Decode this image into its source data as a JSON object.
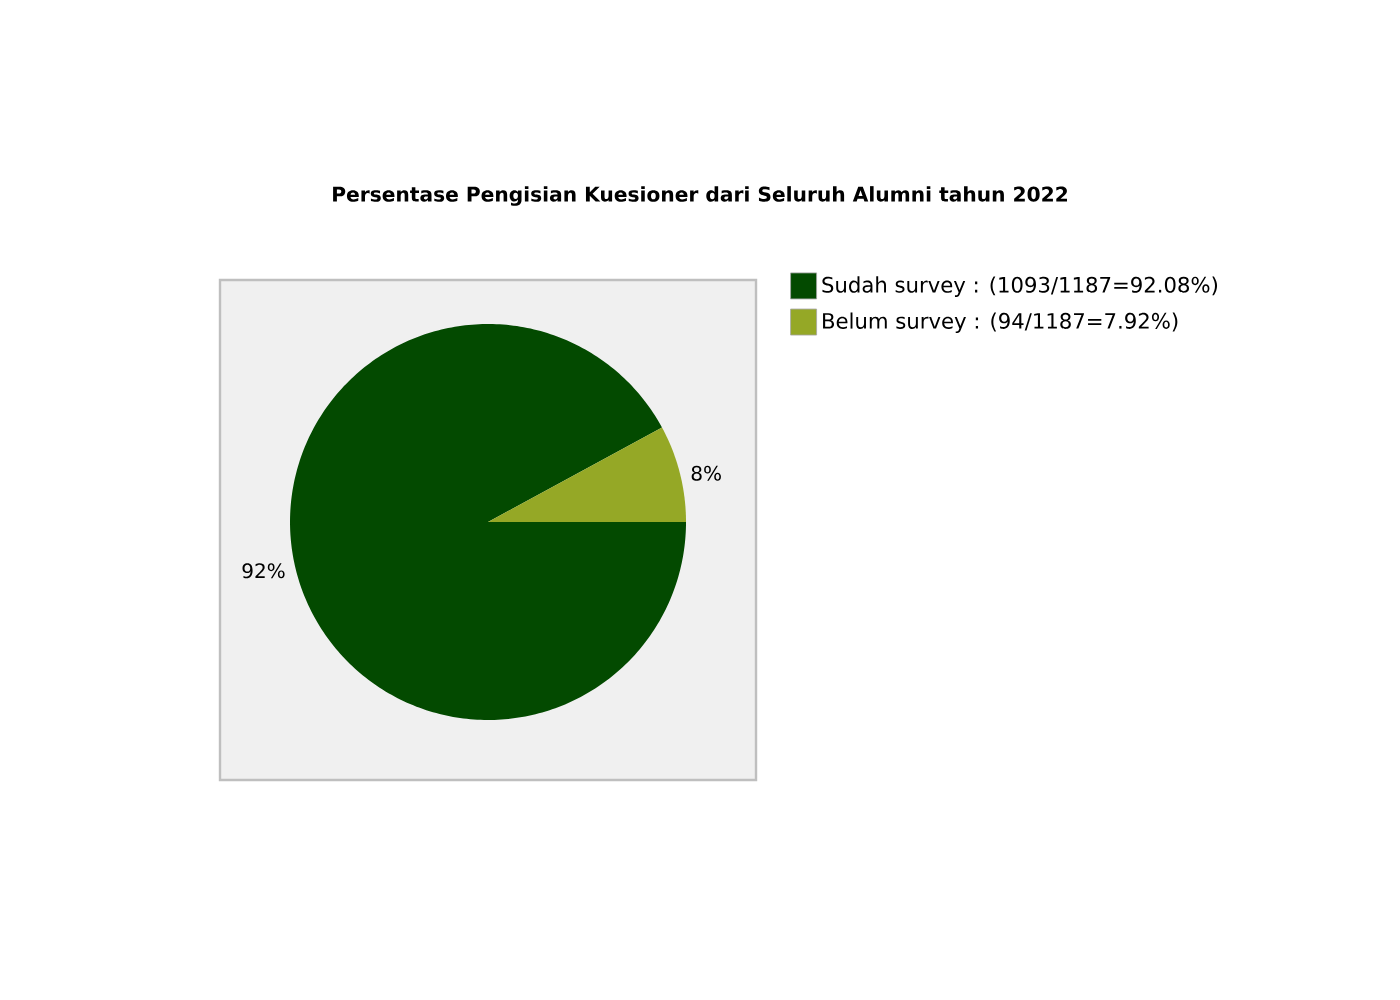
{
  "chart_data": {
    "type": "pie",
    "title": "Persentase Pengisian Kuesioner dari Seluruh Alumni tahun 2022",
    "categories": [
      "Sudah survey : (1093/1187=92.08%)",
      "Belum survey : (94/1187=7.92%)"
    ],
    "values": [
      92.08,
      7.92
    ],
    "colors": [
      "#034a00",
      "#95a826"
    ],
    "value_labels": [
      "92%",
      "8%"
    ],
    "legend": "right"
  }
}
